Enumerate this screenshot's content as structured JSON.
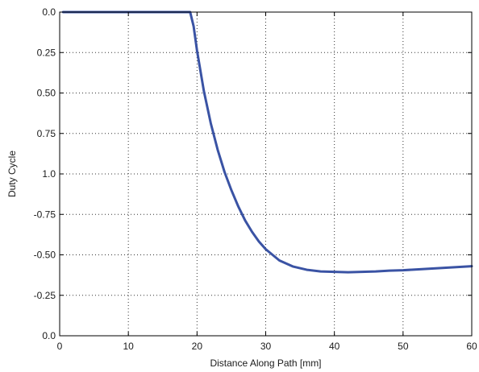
{
  "chart_data": {
    "type": "line",
    "xlabel": "Distance Along Path [mm]",
    "ylabel": "Duty Cycle",
    "xlim": [
      0,
      60
    ],
    "ylim": [
      0,
      8
    ],
    "grid": true,
    "grid_style": "dotted",
    "x_ticks": [
      {
        "value": 0,
        "label": "0"
      },
      {
        "value": 10,
        "label": "10"
      },
      {
        "value": 20,
        "label": "20"
      },
      {
        "value": 30,
        "label": "30"
      },
      {
        "value": 40,
        "label": "40"
      },
      {
        "value": 50,
        "label": "50"
      },
      {
        "value": 60,
        "label": "60"
      }
    ],
    "y_ticks": [
      {
        "value": 8,
        "label": "0.0"
      },
      {
        "value": 7,
        "label": "0.25"
      },
      {
        "value": 6,
        "label": "0.50"
      },
      {
        "value": 5,
        "label": "0.75"
      },
      {
        "value": 4,
        "label": "1.0"
      },
      {
        "value": 3,
        "label": "-0.75"
      },
      {
        "value": 2,
        "label": "-0.50"
      },
      {
        "value": 1,
        "label": "-0.25"
      },
      {
        "value": 0,
        "label": "0.0"
      }
    ],
    "series": [
      {
        "color": "#3a53a4",
        "x": [
          0.5,
          5,
          10,
          15,
          18,
          19,
          19.5,
          20,
          21,
          22,
          23,
          24,
          25,
          26,
          27,
          28,
          29,
          30,
          32,
          34,
          36,
          38,
          40,
          42,
          44,
          46,
          48,
          50,
          52,
          54,
          56,
          58,
          60
        ],
        "y": [
          8.0,
          8.0,
          8.0,
          8.0,
          8.0,
          8.0,
          7.65,
          7.05,
          6.05,
          5.25,
          4.6,
          4.05,
          3.6,
          3.2,
          2.85,
          2.57,
          2.33,
          2.14,
          1.86,
          1.71,
          1.63,
          1.59,
          1.58,
          1.57,
          1.58,
          1.59,
          1.61,
          1.62,
          1.64,
          1.66,
          1.68,
          1.7,
          1.72
        ]
      }
    ]
  }
}
